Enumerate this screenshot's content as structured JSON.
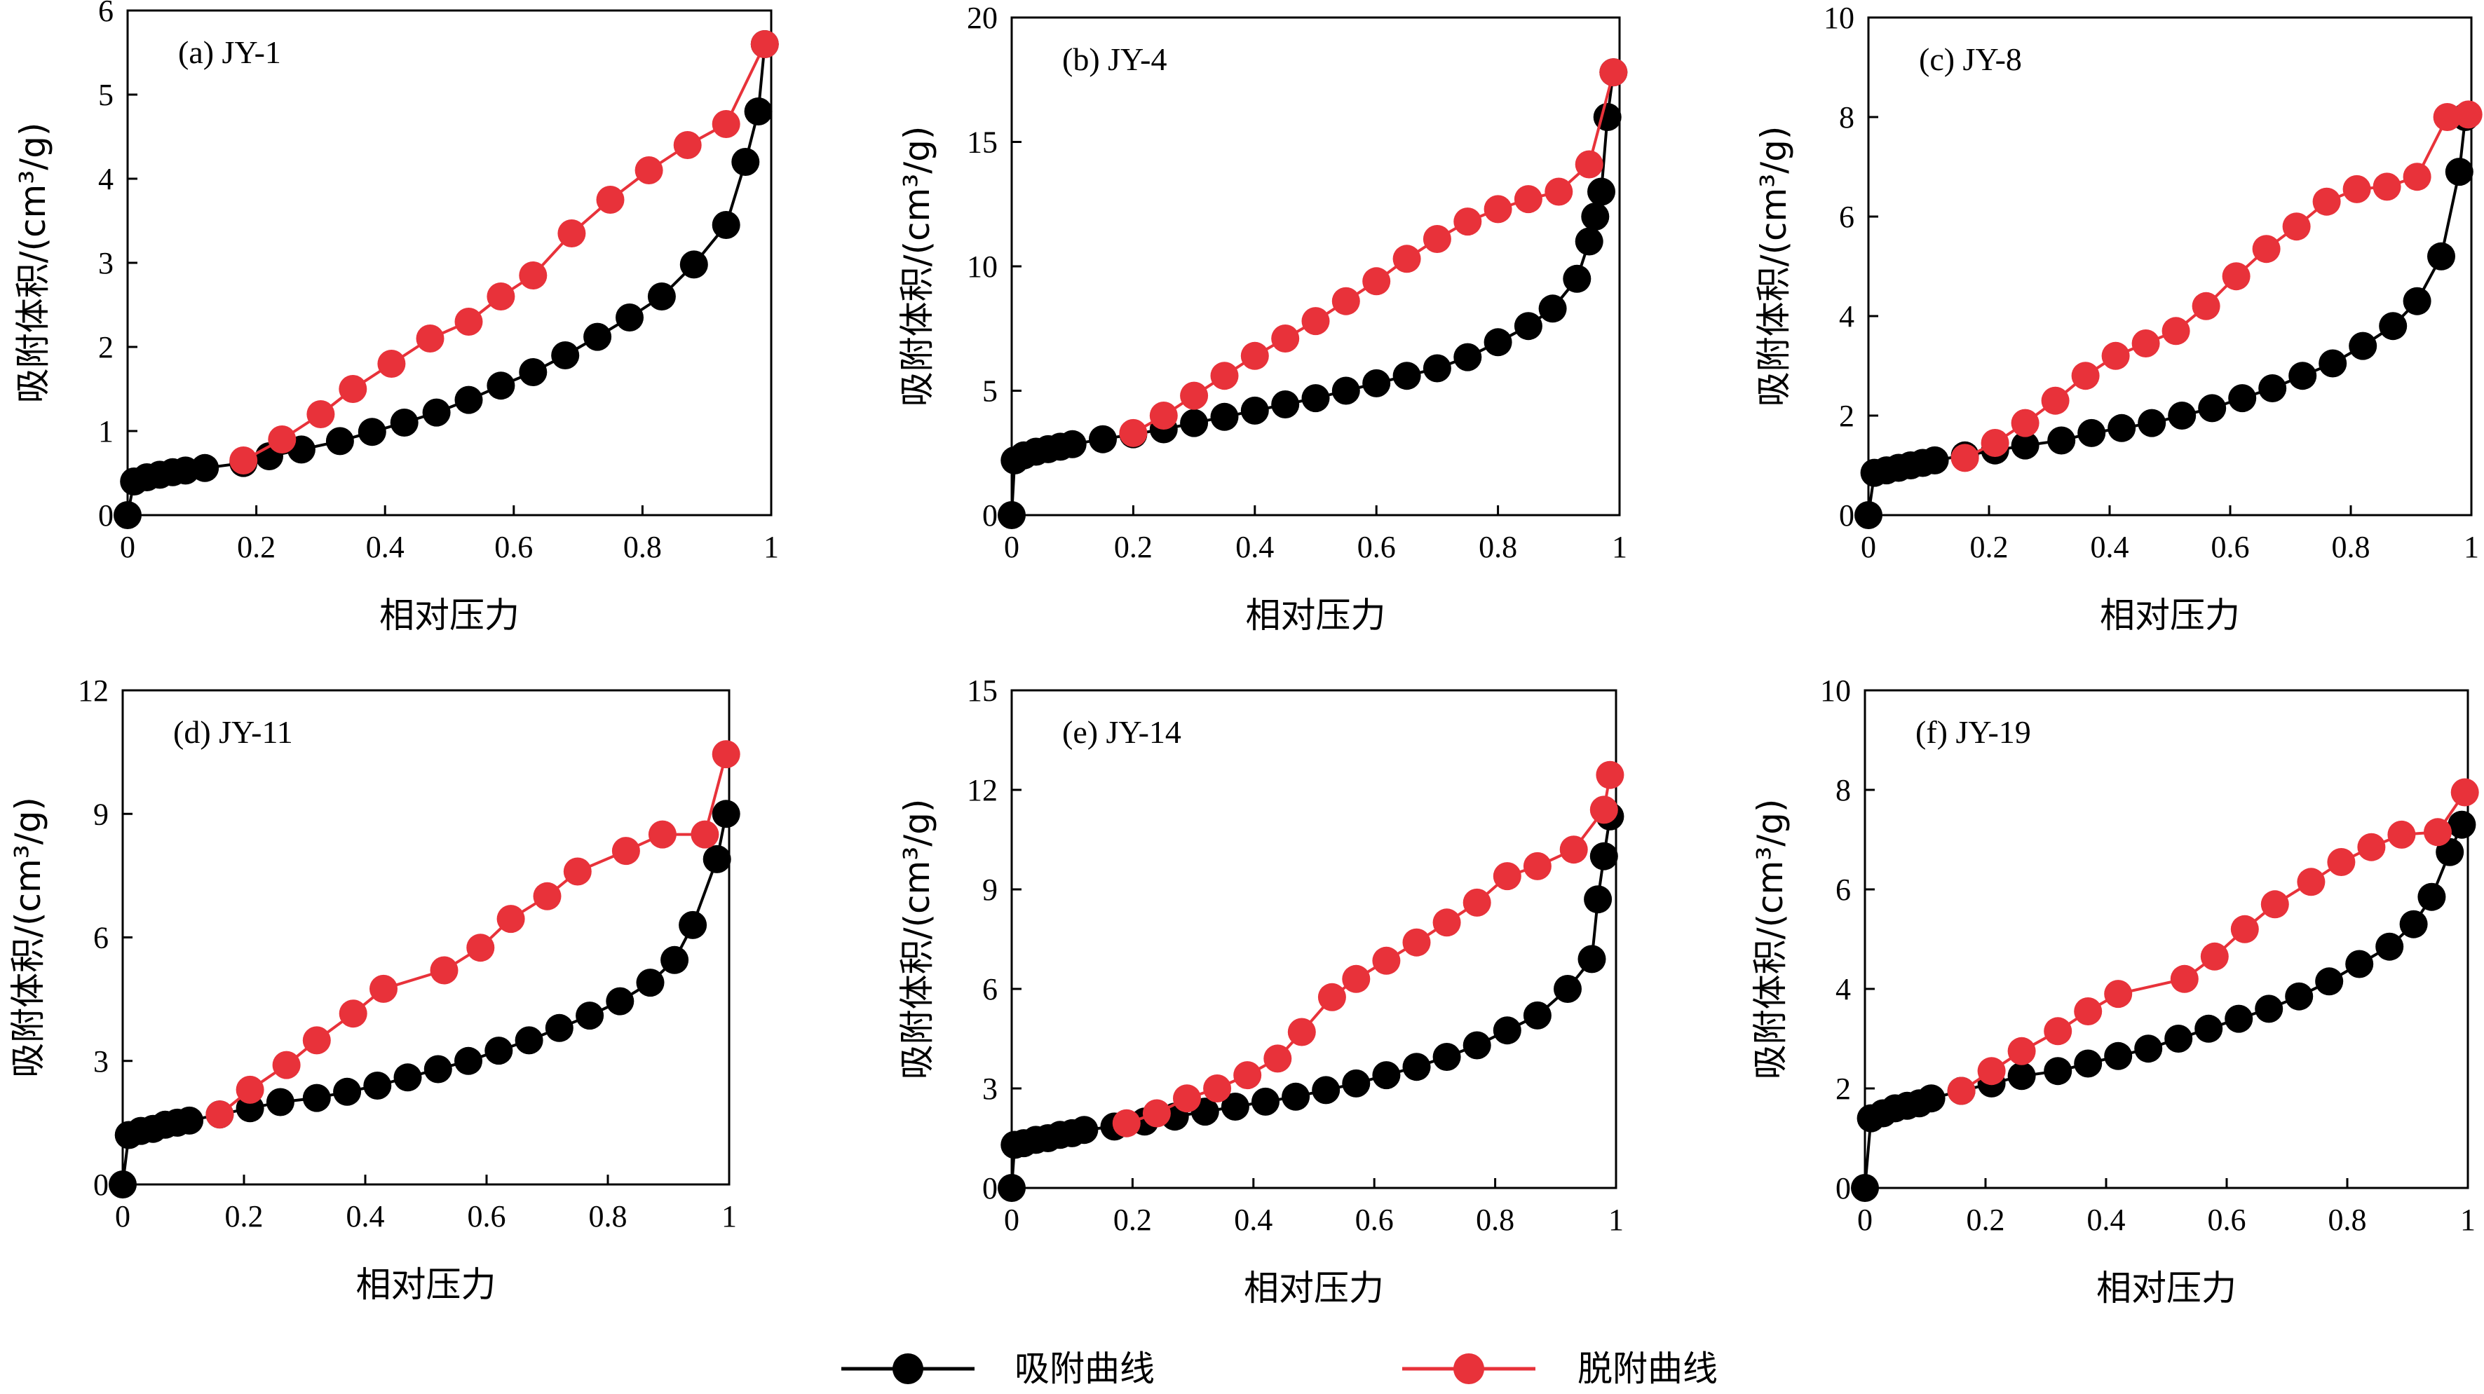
{
  "colors": {
    "adsorption": "#000000",
    "desorption": "#e8323a"
  },
  "legend": [
    {
      "key": "adsorption",
      "label": "吸附曲线"
    },
    {
      "key": "desorption",
      "label": "脱附曲线"
    }
  ],
  "chart_data": [
    {
      "type": "line",
      "title": "(a) JY-1",
      "xlabel": "相对压力",
      "ylabel": "吸附体积/(cm³/g)",
      "xlim": [
        0,
        1
      ],
      "ylim": [
        0,
        6
      ],
      "xticks": [
        0,
        0.2,
        0.4,
        0.6,
        0.8,
        1
      ],
      "xtick_labels": [
        "0",
        "0.2",
        "0.4",
        "0.6",
        "0.8",
        "1"
      ],
      "yticks": [
        0,
        1,
        2,
        3,
        4,
        5,
        6
      ],
      "ytick_labels": [
        "0",
        "1",
        "2",
        "3",
        "4",
        "5",
        "6"
      ],
      "series": [
        {
          "name": "吸附曲线",
          "x": [
            0,
            0.01,
            0.03,
            0.05,
            0.07,
            0.09,
            0.12,
            0.18,
            0.22,
            0.27,
            0.33,
            0.38,
            0.43,
            0.48,
            0.53,
            0.58,
            0.63,
            0.68,
            0.73,
            0.78,
            0.83,
            0.88,
            0.93,
            0.96,
            0.98,
            0.99
          ],
          "y": [
            0,
            0.4,
            0.45,
            0.48,
            0.51,
            0.53,
            0.56,
            0.62,
            0.7,
            0.78,
            0.88,
            0.99,
            1.1,
            1.22,
            1.37,
            1.54,
            1.7,
            1.9,
            2.12,
            2.35,
            2.6,
            2.98,
            3.45,
            4.2,
            4.8,
            5.6
          ]
        },
        {
          "name": "脱附曲线",
          "x": [
            0.18,
            0.24,
            0.3,
            0.35,
            0.41,
            0.47,
            0.53,
            0.58,
            0.63,
            0.69,
            0.75,
            0.81,
            0.87,
            0.93,
            0.99
          ],
          "y": [
            0.65,
            0.9,
            1.2,
            1.5,
            1.8,
            2.1,
            2.3,
            2.6,
            2.85,
            3.35,
            3.75,
            4.1,
            4.4,
            4.65,
            5.6
          ]
        }
      ]
    },
    {
      "type": "line",
      "title": "(b) JY-4",
      "xlabel": "相对压力",
      "ylabel": "吸附体积/(cm³/g)",
      "xlim": [
        0,
        1
      ],
      "ylim": [
        0,
        20
      ],
      "xticks": [
        0,
        0.2,
        0.4,
        0.6,
        0.8,
        1
      ],
      "xtick_labels": [
        "0",
        "0.2",
        "0.4",
        "0.6",
        "0.8",
        "1"
      ],
      "yticks": [
        0,
        5,
        10,
        15,
        20
      ],
      "ytick_labels": [
        "0",
        "5",
        "10",
        "15",
        "20"
      ],
      "series": [
        {
          "name": "吸附曲线",
          "x": [
            0,
            0.005,
            0.02,
            0.04,
            0.06,
            0.08,
            0.1,
            0.15,
            0.2,
            0.25,
            0.3,
            0.35,
            0.4,
            0.45,
            0.5,
            0.55,
            0.6,
            0.65,
            0.7,
            0.75,
            0.8,
            0.85,
            0.89,
            0.93,
            0.95,
            0.96,
            0.97,
            0.98,
            0.99
          ],
          "y": [
            0,
            2.2,
            2.4,
            2.55,
            2.65,
            2.75,
            2.85,
            3.05,
            3.25,
            3.45,
            3.7,
            3.95,
            4.2,
            4.45,
            4.7,
            5.0,
            5.3,
            5.6,
            5.9,
            6.35,
            6.95,
            7.6,
            8.3,
            9.5,
            11.0,
            12.0,
            13.0,
            16.0,
            17.8
          ]
        },
        {
          "name": "脱附曲线",
          "x": [
            0.2,
            0.25,
            0.3,
            0.35,
            0.4,
            0.45,
            0.5,
            0.55,
            0.6,
            0.65,
            0.7,
            0.75,
            0.8,
            0.85,
            0.9,
            0.95,
            0.99
          ],
          "y": [
            3.3,
            4.0,
            4.8,
            5.6,
            6.4,
            7.1,
            7.8,
            8.6,
            9.4,
            10.3,
            11.1,
            11.8,
            12.3,
            12.7,
            13.0,
            14.1,
            17.8
          ]
        }
      ]
    },
    {
      "type": "line",
      "title": "(c) JY-8",
      "xlabel": "相对压力",
      "ylabel": "吸附体积/(cm³/g)",
      "xlim": [
        0,
        1
      ],
      "ylim": [
        0,
        10
      ],
      "xticks": [
        0,
        0.2,
        0.4,
        0.6,
        0.8,
        1
      ],
      "xtick_labels": [
        "0",
        "0.2",
        "0.4",
        "0.6",
        "0.8",
        "1"
      ],
      "yticks": [
        0,
        2,
        4,
        6,
        8,
        10
      ],
      "ytick_labels": [
        "0",
        "2",
        "4",
        "6",
        "8",
        "10"
      ],
      "series": [
        {
          "name": "吸附曲线",
          "x": [
            0,
            0.01,
            0.03,
            0.05,
            0.07,
            0.09,
            0.11,
            0.16,
            0.21,
            0.26,
            0.32,
            0.37,
            0.42,
            0.47,
            0.52,
            0.57,
            0.62,
            0.67,
            0.72,
            0.77,
            0.82,
            0.87,
            0.91,
            0.95,
            0.98,
            0.99
          ],
          "y": [
            0,
            0.85,
            0.9,
            0.95,
            1.0,
            1.05,
            1.1,
            1.2,
            1.3,
            1.4,
            1.5,
            1.65,
            1.75,
            1.85,
            2.0,
            2.15,
            2.35,
            2.55,
            2.8,
            3.05,
            3.4,
            3.8,
            4.3,
            5.2,
            6.9,
            8.0
          ]
        },
        {
          "name": "脱附曲线",
          "x": [
            0.16,
            0.21,
            0.26,
            0.31,
            0.36,
            0.41,
            0.46,
            0.51,
            0.56,
            0.61,
            0.66,
            0.71,
            0.76,
            0.81,
            0.86,
            0.91,
            0.96,
            0.995
          ],
          "y": [
            1.15,
            1.45,
            1.85,
            2.3,
            2.8,
            3.2,
            3.45,
            3.7,
            4.2,
            4.8,
            5.35,
            5.8,
            6.3,
            6.55,
            6.6,
            6.8,
            8.0,
            8.05
          ]
        }
      ]
    },
    {
      "type": "line",
      "title": "(d) JY-11",
      "xlabel": "相对压力",
      "ylabel": "吸附体积/(cm³/g)",
      "xlim": [
        0,
        1
      ],
      "ylim": [
        0,
        12
      ],
      "xticks": [
        0,
        0.2,
        0.4,
        0.6,
        0.8,
        1
      ],
      "xtick_labels": [
        "0",
        "0.2",
        "0.4",
        "0.6",
        "0.8",
        "1"
      ],
      "yticks": [
        0,
        3,
        6,
        9,
        12
      ],
      "ytick_labels": [
        "0",
        "3",
        "6",
        "9",
        "12"
      ],
      "series": [
        {
          "name": "吸附曲线",
          "x": [
            0,
            0.01,
            0.03,
            0.05,
            0.07,
            0.09,
            0.11,
            0.16,
            0.21,
            0.26,
            0.32,
            0.37,
            0.42,
            0.47,
            0.52,
            0.57,
            0.62,
            0.67,
            0.72,
            0.77,
            0.82,
            0.87,
            0.91,
            0.94,
            0.98,
            0.995
          ],
          "y": [
            0,
            1.2,
            1.3,
            1.35,
            1.45,
            1.5,
            1.55,
            1.7,
            1.85,
            2.0,
            2.1,
            2.25,
            2.4,
            2.6,
            2.8,
            3.0,
            3.25,
            3.5,
            3.8,
            4.1,
            4.45,
            4.9,
            5.45,
            6.3,
            7.9,
            9.0
          ]
        },
        {
          "name": "脱附曲线",
          "x": [
            0.16,
            0.21,
            0.27,
            0.32,
            0.38,
            0.43,
            0.53,
            0.59,
            0.64,
            0.7,
            0.75,
            0.83,
            0.89,
            0.96,
            0.995
          ],
          "y": [
            1.7,
            2.3,
            2.9,
            3.5,
            4.15,
            4.75,
            5.2,
            5.75,
            6.45,
            7.0,
            7.6,
            8.1,
            8.5,
            8.5,
            10.45
          ]
        }
      ]
    },
    {
      "type": "line",
      "title": "(e) JY-14",
      "xlabel": "相对压力",
      "ylabel": "吸附体积/(cm³/g)",
      "xlim": [
        0,
        1
      ],
      "ylim": [
        0,
        15
      ],
      "xticks": [
        0,
        0.2,
        0.4,
        0.6,
        0.8,
        1
      ],
      "xtick_labels": [
        "0",
        "0.2",
        "0.4",
        "0.6",
        "0.8",
        "1"
      ],
      "yticks": [
        0,
        3,
        6,
        9,
        12,
        15
      ],
      "ytick_labels": [
        "0",
        "3",
        "6",
        "9",
        "12",
        "15"
      ],
      "series": [
        {
          "name": "吸附曲线",
          "x": [
            0,
            0.005,
            0.02,
            0.04,
            0.06,
            0.08,
            0.1,
            0.12,
            0.17,
            0.22,
            0.27,
            0.32,
            0.37,
            0.42,
            0.47,
            0.52,
            0.57,
            0.62,
            0.67,
            0.72,
            0.77,
            0.82,
            0.87,
            0.92,
            0.96,
            0.97,
            0.98,
            0.99
          ],
          "y": [
            0,
            1.3,
            1.35,
            1.45,
            1.5,
            1.6,
            1.65,
            1.75,
            1.85,
            2.0,
            2.15,
            2.3,
            2.45,
            2.6,
            2.75,
            2.95,
            3.15,
            3.4,
            3.65,
            3.95,
            4.3,
            4.75,
            5.2,
            6.0,
            6.9,
            8.7,
            10.0,
            11.2
          ]
        },
        {
          "name": "脱附曲线",
          "x": [
            0.19,
            0.24,
            0.29,
            0.34,
            0.39,
            0.44,
            0.48,
            0.53,
            0.57,
            0.62,
            0.67,
            0.72,
            0.77,
            0.82,
            0.87,
            0.93,
            0.98,
            0.99
          ],
          "y": [
            1.95,
            2.25,
            2.7,
            3.0,
            3.4,
            3.9,
            4.7,
            5.75,
            6.3,
            6.85,
            7.4,
            8.0,
            8.6,
            9.4,
            9.7,
            10.2,
            11.4,
            12.45
          ]
        }
      ]
    },
    {
      "type": "line",
      "title": "(f) JY-19",
      "xlabel": "相对压力",
      "ylabel": "吸附体积/(cm³/g)",
      "xlim": [
        0,
        1
      ],
      "ylim": [
        0,
        10
      ],
      "xticks": [
        0,
        0.2,
        0.4,
        0.6,
        0.8,
        1
      ],
      "xtick_labels": [
        "0",
        "0.2",
        "0.4",
        "0.6",
        "0.8",
        "1"
      ],
      "yticks": [
        0,
        2,
        4,
        6,
        8,
        10
      ],
      "ytick_labels": [
        "0",
        "2",
        "4",
        "6",
        "8",
        "10"
      ],
      "series": [
        {
          "name": "吸附曲线",
          "x": [
            0,
            0.01,
            0.03,
            0.05,
            0.07,
            0.09,
            0.11,
            0.16,
            0.21,
            0.26,
            0.32,
            0.37,
            0.42,
            0.47,
            0.52,
            0.57,
            0.62,
            0.67,
            0.72,
            0.77,
            0.82,
            0.87,
            0.91,
            0.94,
            0.97,
            0.99
          ],
          "y": [
            0,
            1.4,
            1.5,
            1.6,
            1.65,
            1.7,
            1.8,
            1.95,
            2.1,
            2.25,
            2.35,
            2.5,
            2.65,
            2.8,
            3.0,
            3.2,
            3.4,
            3.6,
            3.85,
            4.15,
            4.5,
            4.85,
            5.3,
            5.85,
            6.75,
            7.3
          ]
        },
        {
          "name": "脱附曲线",
          "x": [
            0.16,
            0.21,
            0.26,
            0.32,
            0.37,
            0.42,
            0.53,
            0.58,
            0.63,
            0.68,
            0.74,
            0.79,
            0.84,
            0.89,
            0.95,
            0.995
          ],
          "y": [
            1.95,
            2.35,
            2.75,
            3.15,
            3.55,
            3.9,
            4.2,
            4.65,
            5.2,
            5.7,
            6.15,
            6.55,
            6.85,
            7.1,
            7.15,
            7.95
          ]
        }
      ]
    }
  ]
}
